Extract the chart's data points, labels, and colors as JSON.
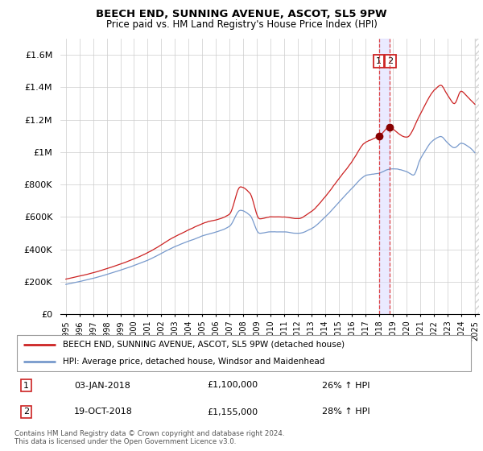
{
  "title": "BEECH END, SUNNING AVENUE, ASCOT, SL5 9PW",
  "subtitle": "Price paid vs. HM Land Registry's House Price Index (HPI)",
  "legend_line1": "BEECH END, SUNNING AVENUE, ASCOT, SL5 9PW (detached house)",
  "legend_line2": "HPI: Average price, detached house, Windsor and Maidenhead",
  "annotation1_date": "03-JAN-2018",
  "annotation1_price": "£1,100,000",
  "annotation1_hpi": "26% ↑ HPI",
  "annotation2_date": "19-OCT-2018",
  "annotation2_price": "£1,155,000",
  "annotation2_hpi": "28% ↑ HPI",
  "footer": "Contains HM Land Registry data © Crown copyright and database right 2024.\nThis data is licensed under the Open Government Licence v3.0.",
  "red_color": "#cc2222",
  "blue_color": "#7799cc",
  "vline_color": "#dd3333",
  "shade_color": "#ddddff",
  "annotation_box_color": "#cc2222",
  "ylim_min": 0,
  "ylim_max": 1700000,
  "yticks": [
    0,
    200000,
    400000,
    600000,
    800000,
    1000000,
    1200000,
    1400000,
    1600000
  ],
  "ytick_labels": [
    "£0",
    "£200K",
    "£400K",
    "£600K",
    "£800K",
    "£1M",
    "£1.2M",
    "£1.4M",
    "£1.6M"
  ],
  "sale1_year": 2018.0,
  "sale2_year": 2018.75,
  "sale1_price": 1100000,
  "sale2_price": 1155000,
  "xmin": 1995.0,
  "xmax": 2025.0
}
